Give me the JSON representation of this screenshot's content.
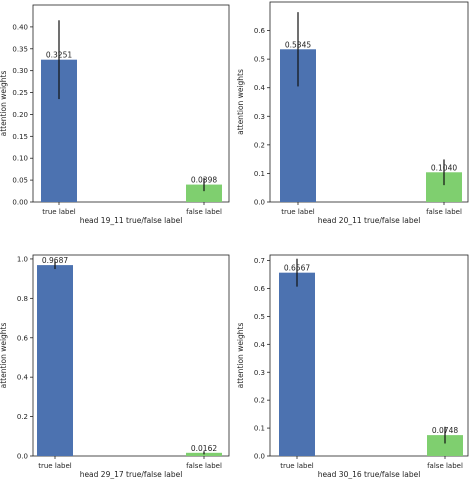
{
  "chart_data": [
    {
      "type": "bar",
      "categories": [
        "true label",
        "false label"
      ],
      "values": [
        0.3251,
        0.0398
      ],
      "errors": [
        0.09,
        0.015
      ],
      "data_labels": [
        "0.3251",
        "0.0398"
      ],
      "colors": [
        "#4c72b0",
        "#7fcf6f"
      ],
      "xlabel": "head 19_11 true/false label",
      "ylabel": "attention weights",
      "ylim": [
        0,
        0.45
      ],
      "yticks": [
        0.0,
        0.05,
        0.1,
        0.15,
        0.2,
        0.25,
        0.3,
        0.35,
        0.4
      ],
      "ytick_labels": [
        "0.00",
        "0.05",
        "0.10",
        "0.15",
        "0.20",
        "0.25",
        "0.30",
        "0.35",
        "0.40"
      ]
    },
    {
      "type": "bar",
      "categories": [
        "true label",
        "false label"
      ],
      "values": [
        0.5345,
        0.104
      ],
      "errors": [
        0.13,
        0.045
      ],
      "data_labels": [
        "0.5345",
        "0.1040"
      ],
      "colors": [
        "#4c72b0",
        "#7fcf6f"
      ],
      "xlabel": "head 20_11 true/false label",
      "ylabel": "attention weights",
      "ylim": [
        0,
        0.7
      ],
      "yticks": [
        0.0,
        0.1,
        0.2,
        0.3,
        0.4,
        0.5,
        0.6
      ],
      "ytick_labels": [
        "0.0",
        "0.1",
        "0.2",
        "0.3",
        "0.4",
        "0.5",
        "0.6"
      ]
    },
    {
      "type": "bar",
      "categories": [
        "true label",
        "false label"
      ],
      "values": [
        0.9687,
        0.0162
      ],
      "errors": [
        0.02,
        0.008
      ],
      "data_labels": [
        "0.9687",
        "0.0162"
      ],
      "colors": [
        "#4c72b0",
        "#7fcf6f"
      ],
      "xlabel": "head 29_17 true/false label",
      "ylabel": "attention weights",
      "ylim": [
        0,
        1.02
      ],
      "yticks": [
        0.0,
        0.2,
        0.4,
        0.6,
        0.8,
        1.0
      ],
      "ytick_labels": [
        "0.0",
        "0.2",
        "0.4",
        "0.6",
        "0.8",
        "1.0"
      ]
    },
    {
      "type": "bar",
      "categories": [
        "true label",
        "false label"
      ],
      "values": [
        0.6567,
        0.0748
      ],
      "errors": [
        0.05,
        0.03
      ],
      "data_labels": [
        "0.6567",
        "0.0748"
      ],
      "colors": [
        "#4c72b0",
        "#7fcf6f"
      ],
      "xlabel": "head 30_16 true/false label",
      "ylabel": "attention weights",
      "ylim": [
        0,
        0.72
      ],
      "yticks": [
        0.0,
        0.1,
        0.2,
        0.3,
        0.4,
        0.5,
        0.6,
        0.7
      ],
      "ytick_labels": [
        "0.0",
        "0.1",
        "0.2",
        "0.3",
        "0.4",
        "0.5",
        "0.6",
        "0.7"
      ]
    }
  ]
}
